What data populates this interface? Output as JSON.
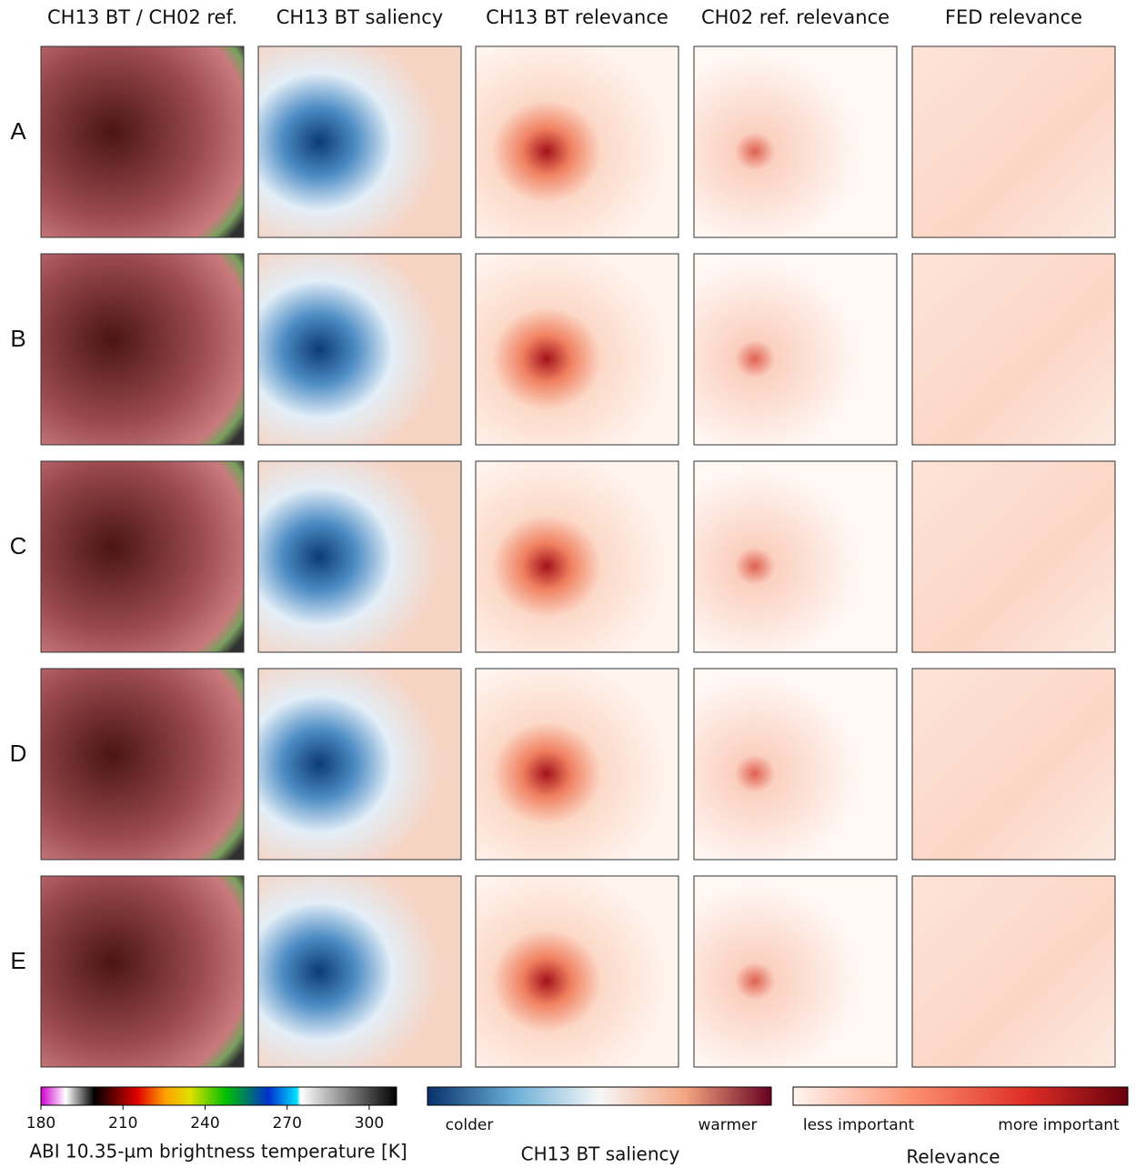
{
  "columns": [
    "CH13 BT / CH02 ref.",
    "CH13 BT saliency",
    "CH13 BT relevance",
    "CH02 ref. relevance",
    "FED relevance"
  ],
  "rows": [
    "A",
    "B",
    "C",
    "D",
    "E"
  ],
  "colorbars": [
    {
      "ticks": [
        180,
        210,
        240,
        270,
        300
      ],
      "range": [
        180,
        310
      ],
      "label": "ABI 10.35-µm brightness temperature [K]"
    },
    {
      "left": "colder",
      "right": "warmer",
      "label": "CH13 BT saliency"
    },
    {
      "left": "less important",
      "right": "more important",
      "label": "Relevance"
    }
  ]
}
